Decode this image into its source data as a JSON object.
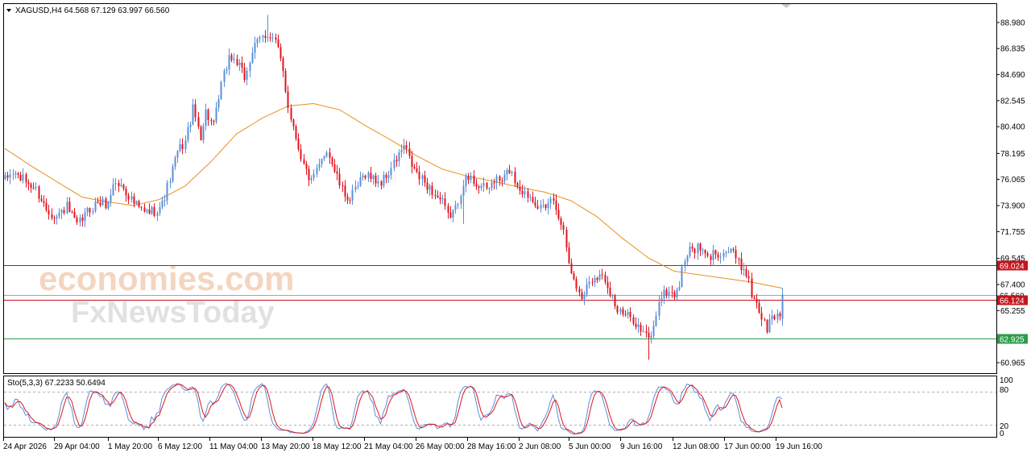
{
  "header": {
    "symbol_line": "XAGUSD,H4  64.568 67.129 63.997 66.560"
  },
  "indicator": {
    "label": "Sto(5,3,3) 67.2233 50.6494",
    "levels": [
      "100",
      "80",
      "20",
      "0"
    ]
  },
  "watermark": {
    "line1": "economies.com",
    "line2": "FxNewsToday"
  },
  "colors": {
    "bull": "#5b8fd9",
    "bear": "#e0141e",
    "ma": "#e8901c",
    "resistance": "#c3151d",
    "support": "#2e9b4a",
    "stoch_main": "#5b8fd9",
    "stoch_signal": "#e0141e",
    "current_price": "#8fa8c8"
  },
  "chart_data": {
    "type": "candlestick",
    "symbol": "XAGUSD",
    "timeframe": "H4",
    "ohlc_header": {
      "open": 64.568,
      "high": 67.129,
      "low": 63.997,
      "close": 66.56
    },
    "y_ticks": [
      "88.980",
      "86.835",
      "84.690",
      "82.545",
      "80.400",
      "78.195",
      "76.065",
      "73.900",
      "71.755",
      "69.545",
      "67.400",
      "65.255",
      "60.965"
    ],
    "ylim": [
      60.1,
      90.5
    ],
    "x_ticks": [
      "24 Apr 2026",
      "29 Apr 04:00",
      "1 May 20:00",
      "6 May 12:00",
      "11 May 04:00",
      "13 May 20:00",
      "18 May 12:00",
      "21 May 04:00",
      "26 May 00:00",
      "28 May 16:00",
      "2 Jun 08:00",
      "5 Jun 00:00",
      "9 Jun 16:00",
      "12 Jun 08:00",
      "17 Jun 00:00",
      "19 Jun 16:00"
    ],
    "price_labels": [
      {
        "value": 69.024,
        "text": "69.024",
        "kind": "resistance"
      },
      {
        "value": 66.56,
        "text": "66.560",
        "kind": "current"
      },
      {
        "value": 66.124,
        "text": "66.124",
        "kind": "resistance"
      },
      {
        "value": 62.925,
        "text": "62.925",
        "kind": "support"
      }
    ],
    "waypoints": [
      [
        0,
        76.0
      ],
      [
        3,
        76.6
      ],
      [
        8,
        75.9
      ],
      [
        12,
        75.2
      ],
      [
        16,
        73.6
      ],
      [
        20,
        73.0
      ],
      [
        24,
        73.8
      ],
      [
        28,
        72.2
      ],
      [
        32,
        73.4
      ],
      [
        36,
        74.2
      ],
      [
        40,
        74.0
      ],
      [
        42,
        75.8
      ],
      [
        46,
        75.4
      ],
      [
        50,
        74.1
      ],
      [
        54,
        73.3
      ],
      [
        58,
        73.5
      ],
      [
        61,
        74.0
      ],
      [
        64,
        76.1
      ],
      [
        67,
        78.3
      ],
      [
        70,
        79.2
      ],
      [
        73,
        81.8
      ],
      [
        76,
        79.7
      ],
      [
        78,
        81.6
      ],
      [
        81,
        80.4
      ],
      [
        84,
        83.8
      ],
      [
        87,
        86.2
      ],
      [
        90,
        85.7
      ],
      [
        93,
        84.4
      ],
      [
        96,
        86.6
      ],
      [
        99,
        87.6
      ],
      [
        102,
        88.1
      ],
      [
        105,
        87.4
      ],
      [
        108,
        85.0
      ],
      [
        110,
        82.1
      ],
      [
        113,
        79.6
      ],
      [
        116,
        77.2
      ],
      [
        119,
        75.8
      ],
      [
        122,
        77.1
      ],
      [
        125,
        78.6
      ],
      [
        128,
        76.8
      ],
      [
        131,
        75.1
      ],
      [
        134,
        74.4
      ],
      [
        137,
        75.5
      ],
      [
        140,
        76.6
      ],
      [
        143,
        76.1
      ],
      [
        146,
        75.8
      ],
      [
        149,
        76.6
      ],
      [
        152,
        77.7
      ],
      [
        155,
        78.8
      ],
      [
        158,
        77.2
      ],
      [
        161,
        76.2
      ],
      [
        164,
        75.6
      ],
      [
        167,
        74.8
      ],
      [
        170,
        74.1
      ],
      [
        172,
        73.0
      ],
      [
        175,
        73.6
      ],
      [
        178,
        75.9
      ],
      [
        181,
        76.1
      ],
      [
        184,
        75.6
      ],
      [
        187,
        75.2
      ],
      [
        190,
        76.0
      ],
      [
        193,
        75.9
      ],
      [
        196,
        76.9
      ],
      [
        199,
        75.6
      ],
      [
        202,
        74.9
      ],
      [
        205,
        74.6
      ],
      [
        208,
        73.7
      ],
      [
        210,
        73.4
      ],
      [
        212,
        74.6
      ],
      [
        215,
        73.2
      ],
      [
        217,
        71.8
      ],
      [
        219,
        69.6
      ],
      [
        221,
        67.6
      ],
      [
        224,
        66.3
      ],
      [
        227,
        67.7
      ],
      [
        230,
        68.2
      ],
      [
        233,
        67.9
      ],
      [
        236,
        66.4
      ],
      [
        238,
        65.2
      ],
      [
        241,
        64.8
      ],
      [
        244,
        64.6
      ],
      [
        247,
        63.6
      ],
      [
        250,
        62.9
      ],
      [
        252,
        63.8
      ],
      [
        254,
        66.2
      ],
      [
        257,
        66.8
      ],
      [
        260,
        66.6
      ],
      [
        262,
        67.4
      ],
      [
        264,
        69.6
      ],
      [
        267,
        70.4
      ],
      [
        270,
        70.3
      ],
      [
        273,
        69.5
      ],
      [
        276,
        70.1
      ],
      [
        279,
        70.0
      ],
      [
        282,
        70.3
      ],
      [
        285,
        69.1
      ],
      [
        288,
        68.5
      ],
      [
        290,
        66.6
      ],
      [
        292,
        66.0
      ],
      [
        294,
        64.6
      ],
      [
        296,
        63.8
      ],
      [
        298,
        64.7
      ],
      [
        301,
        64.9
      ],
      [
        302,
        66.56
      ]
    ],
    "ma_points": [
      [
        0,
        78.6
      ],
      [
        10,
        77.2
      ],
      [
        20,
        75.9
      ],
      [
        30,
        74.6
      ],
      [
        40,
        74.2
      ],
      [
        50,
        73.9
      ],
      [
        60,
        74.4
      ],
      [
        70,
        75.5
      ],
      [
        80,
        77.5
      ],
      [
        90,
        79.8
      ],
      [
        100,
        81.1
      ],
      [
        110,
        82.1
      ],
      [
        120,
        82.3
      ],
      [
        130,
        81.8
      ],
      [
        140,
        80.5
      ],
      [
        150,
        79.3
      ],
      [
        160,
        78.0
      ],
      [
        170,
        76.9
      ],
      [
        180,
        76.3
      ],
      [
        190,
        75.9
      ],
      [
        200,
        75.4
      ],
      [
        210,
        75.0
      ],
      [
        220,
        74.3
      ],
      [
        230,
        73.0
      ],
      [
        240,
        71.2
      ],
      [
        250,
        69.6
      ],
      [
        260,
        68.5
      ],
      [
        270,
        68.2
      ],
      [
        280,
        67.9
      ],
      [
        290,
        67.6
      ],
      [
        302,
        67.1
      ]
    ],
    "stochastic": {
      "period": "5,3,3",
      "main_value": 67.2233,
      "signal_value": 50.6494,
      "ylim": [
        0,
        100
      ],
      "levels": [
        80,
        20
      ]
    }
  }
}
